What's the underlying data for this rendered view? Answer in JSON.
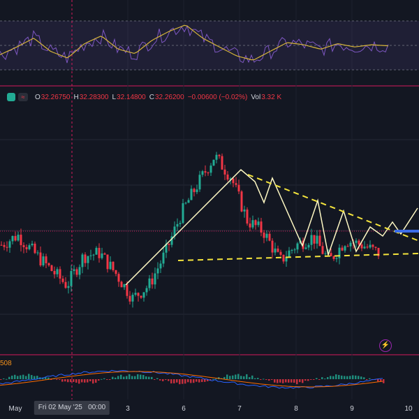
{
  "legend": {
    "open_label": "O",
    "open": "32.26750",
    "high_label": "H",
    "high": "32.28300",
    "low_label": "L",
    "low": "32.14800",
    "close_label": "C",
    "close": "32.26200",
    "change": "−0.00600 (−0.02%)",
    "vol_label": "Vol",
    "vol": "3.32 K",
    "wave_icon": "≈"
  },
  "crosshair": {
    "date_label": "Fri 02 May '25",
    "time_label": "00:00"
  },
  "macd": {
    "value_label": "508"
  },
  "flash_icon": "⚡",
  "colors": {
    "up": "#22ab94",
    "down": "#f23645",
    "rsi": "#7e57c2",
    "rsi_ma": "#d6b43a",
    "pattern": "#fff9c4",
    "trend": "#f5e53d",
    "macd": "#2962ff",
    "signal": "#ff6d00",
    "target": "#3d6ee8"
  },
  "chart_data": {
    "type": "candlestick",
    "x_ticks": [
      "May",
      "3",
      "6",
      "7",
      "8",
      "9",
      "10"
    ],
    "price_trend": [
      32.3,
      32.36,
      32.25,
      32.15,
      32.05,
      32.23,
      32.25,
      32.12,
      31.97,
      32.05,
      32.25,
      32.5,
      32.68,
      32.85,
      32.72,
      32.45,
      32.38,
      32.2,
      32.3,
      32.35,
      32.2,
      32.33,
      32.3,
      32.25
    ],
    "rsi": [
      45,
      52,
      60,
      48,
      42,
      55,
      62,
      50,
      46,
      58,
      66,
      72,
      60,
      52,
      44,
      40,
      48,
      56,
      54,
      50,
      55,
      52,
      54,
      53
    ],
    "pattern_line": [
      [
        32.0,
        32.5
      ],
      [
        32.55,
        32.15
      ],
      [
        32.15,
        32.55
      ]
    ],
    "target_level": 32.27
  }
}
